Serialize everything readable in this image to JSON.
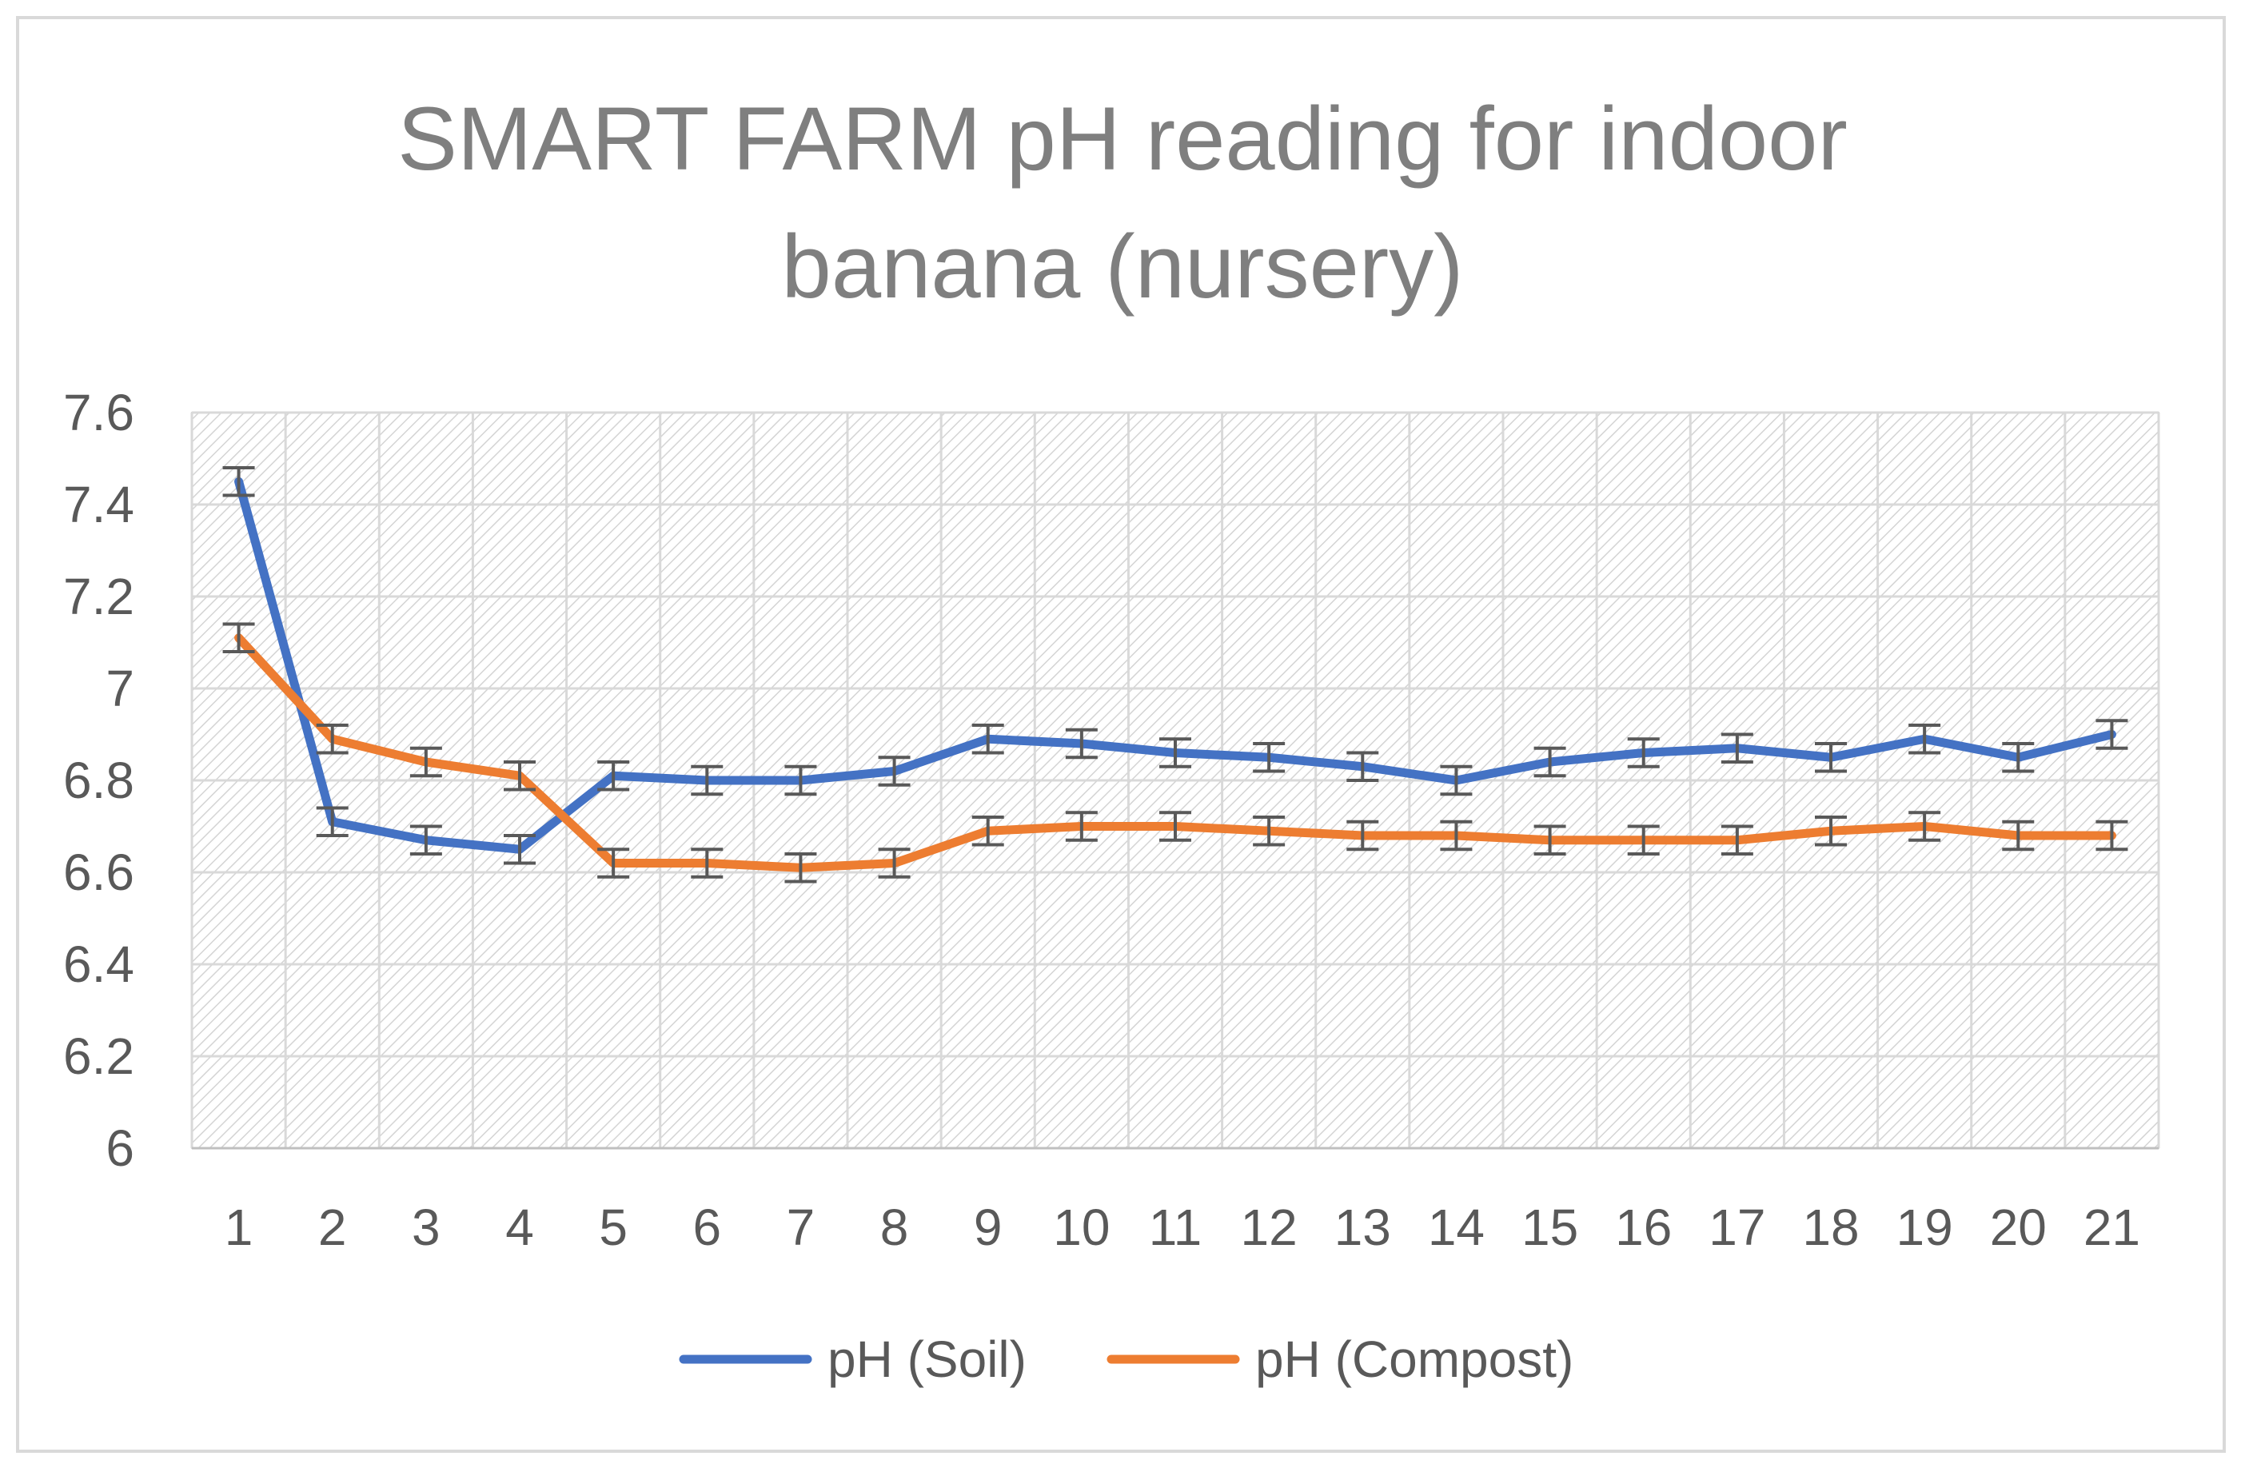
{
  "chart_data": {
    "type": "line",
    "title_lines": [
      "SMART FARM pH reading for indoor",
      "banana (nursery)"
    ],
    "categories": [
      "1",
      "2",
      "3",
      "4",
      "5",
      "6",
      "7",
      "8",
      "9",
      "10",
      "11",
      "12",
      "13",
      "14",
      "15",
      "16",
      "17",
      "18",
      "19",
      "20",
      "21"
    ],
    "ylim": [
      6,
      7.6
    ],
    "yticks": [
      "6",
      "6.2",
      "6.4",
      "6.6",
      "6.8",
      "7",
      "7.2",
      "7.4",
      "7.6"
    ],
    "error_bar": 0.03,
    "grid": true,
    "legend_position": "bottom",
    "series": [
      {
        "name": "pH (Soil)",
        "color": "#4472c4",
        "values": [
          7.45,
          6.71,
          6.67,
          6.65,
          6.81,
          6.8,
          6.8,
          6.82,
          6.89,
          6.88,
          6.86,
          6.85,
          6.83,
          6.8,
          6.84,
          6.86,
          6.87,
          6.85,
          6.89,
          6.85,
          6.9
        ]
      },
      {
        "name": "pH (Compost)",
        "color": "#ed7d31",
        "values": [
          7.11,
          6.89,
          6.84,
          6.81,
          6.62,
          6.62,
          6.61,
          6.62,
          6.69,
          6.7,
          6.7,
          6.69,
          6.68,
          6.68,
          6.67,
          6.67,
          6.67,
          6.69,
          6.7,
          6.68,
          6.68
        ]
      }
    ]
  }
}
